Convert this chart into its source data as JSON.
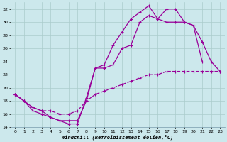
{
  "xlabel": "Windchill (Refroidissement éolien,°C)",
  "background_color": "#cce8ec",
  "grid_color": "#aacccc",
  "line_color": "#990099",
  "xlim": [
    -0.5,
    23.5
  ],
  "ylim": [
    14,
    33
  ],
  "yticks": [
    14,
    16,
    18,
    20,
    22,
    24,
    26,
    28,
    30,
    32
  ],
  "xticks": [
    0,
    1,
    2,
    3,
    4,
    5,
    6,
    7,
    8,
    9,
    10,
    11,
    12,
    13,
    14,
    15,
    16,
    17,
    18,
    19,
    20,
    21,
    22,
    23
  ],
  "series1_x": [
    0,
    1,
    2,
    3,
    4,
    5,
    6,
    7,
    8,
    9,
    10,
    11,
    12,
    13,
    14,
    15,
    16,
    17,
    18,
    19,
    20,
    21,
    22,
    23
  ],
  "series1_y": [
    19.0,
    18.0,
    17.0,
    16.5,
    15.5,
    15.0,
    14.5,
    14.5,
    18.5,
    23.0,
    23.5,
    26.5,
    28.5,
    30.5,
    31.5,
    32.5,
    30.5,
    32.0,
    32.0,
    30.0,
    29.5,
    27.0,
    24.0,
    22.5
  ],
  "series2_x": [
    0,
    1,
    2,
    3,
    4,
    5,
    6,
    7,
    8,
    9,
    10,
    11,
    12,
    13,
    14,
    15,
    16,
    17,
    18,
    19,
    20,
    21,
    22,
    23
  ],
  "series2_y": [
    19.0,
    18.0,
    17.0,
    16.5,
    16.5,
    16.0,
    16.0,
    16.5,
    18.0,
    19.0,
    19.5,
    20.0,
    20.5,
    21.0,
    21.5,
    22.0,
    22.0,
    22.5,
    22.5,
    22.5,
    22.5,
    22.5,
    22.5,
    22.5
  ],
  "series3_x": [
    0,
    1,
    2,
    3,
    4,
    5,
    6,
    7,
    8,
    9,
    10,
    11,
    12,
    13,
    14,
    15,
    16,
    17,
    18,
    19,
    20,
    21,
    22,
    23
  ],
  "series3_y": [
    19.0,
    18.0,
    16.5,
    16.0,
    15.5,
    15.0,
    15.0,
    15.0,
    18.0,
    23.0,
    23.0,
    23.5,
    26.0,
    26.5,
    30.0,
    31.0,
    30.5,
    30.0,
    30.0,
    30.0,
    29.5,
    24.0,
    null,
    null
  ]
}
